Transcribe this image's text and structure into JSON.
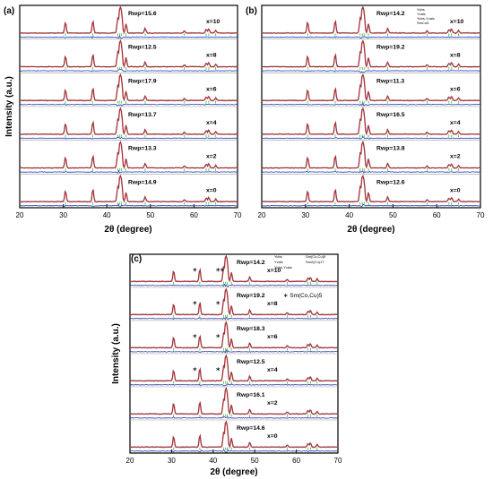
{
  "chart_data": [
    {
      "type": "line",
      "panel_label": "(a)",
      "xlabel": "2θ (degree)",
      "ylabel": "Intensity (a.u.)",
      "xlim": [
        20,
        70
      ],
      "xticks": [
        20,
        30,
        40,
        50,
        60,
        70
      ],
      "legend": null,
      "series": [
        {
          "composition": "x=10",
          "rwp_label": "Rwp=15.6",
          "rwp": 15.6
        },
        {
          "composition": "x=8",
          "rwp_label": "Rwp=12.5",
          "rwp": 12.5
        },
        {
          "composition": "x=6",
          "rwp_label": "Rwp=17.9",
          "rwp": 17.9
        },
        {
          "composition": "x=4",
          "rwp_label": "Rwp=13.7",
          "rwp": 13.7
        },
        {
          "composition": "x=2",
          "rwp_label": "Rwp=13.3",
          "rwp": 13.3
        },
        {
          "composition": "x=0",
          "rwp_label": "Rwp=14.9",
          "rwp": 14.9
        }
      ],
      "peaks_2theta": [
        30.5,
        36.8,
        42.5,
        43.0,
        43.4,
        44.4,
        48.8,
        57.8,
        62.8,
        63.4,
        65.0
      ]
    },
    {
      "type": "line",
      "panel_label": "(b)",
      "xlabel": "2θ (degree)",
      "ylabel": "",
      "xlim": [
        20,
        70
      ],
      "xticks": [
        20,
        30,
        40,
        50,
        60,
        70
      ],
      "legend": [
        "Yobs",
        "Ycalc",
        "Yobs-Ycalc",
        "SmCo5"
      ],
      "series": [
        {
          "composition": "x=10",
          "rwp_label": "Rwp=14.2",
          "rwp": 14.2
        },
        {
          "composition": "x=8",
          "rwp_label": "Rwp=19.2",
          "rwp": 19.2
        },
        {
          "composition": "x=6",
          "rwp_label": "Rwp=11.3",
          "rwp": 11.3
        },
        {
          "composition": "x=4",
          "rwp_label": "Rwp=16.5",
          "rwp": 16.5
        },
        {
          "composition": "x=2",
          "rwp_label": "Rwp=13.8",
          "rwp": 13.8
        },
        {
          "composition": "x=0",
          "rwp_label": "Rwp=12.6",
          "rwp": 12.6
        }
      ],
      "peaks_2theta": [
        30.5,
        36.8,
        42.5,
        43.0,
        43.4,
        44.4,
        48.8,
        57.8,
        62.8,
        63.4,
        65.0
      ]
    },
    {
      "type": "line",
      "panel_label": "(c)",
      "xlabel": "2θ (degree)",
      "ylabel": "Intensity (a.u.)",
      "xlim": [
        20,
        70
      ],
      "xticks": [
        20,
        30,
        40,
        50,
        60,
        70
      ],
      "legend": [
        "Yobs",
        "Ycalc",
        "Yobs-Ycalc",
        "Sm(Co,Cu)5",
        "Sm2(Co)17"
      ],
      "annotation": "∗ Sm(Co,Cu)5",
      "series": [
        {
          "composition": "x=10",
          "rwp_label": "Rwp=14.2",
          "rwp": 14.2,
          "star_2theta": [
            35.6,
            41.2,
            42.2
          ]
        },
        {
          "composition": "x=8",
          "rwp_label": "Rwp=19.2",
          "rwp": 19.2,
          "star_2theta": [
            35.6,
            41.2
          ]
        },
        {
          "composition": "x=6",
          "rwp_label": "Rwp=18.3",
          "rwp": 18.3,
          "star_2theta": [
            35.6,
            41.2
          ]
        },
        {
          "composition": "x=4",
          "rwp_label": "Rwp=12.5",
          "rwp": 12.5,
          "star_2theta": [
            35.6,
            41.2
          ]
        },
        {
          "composition": "x=2",
          "rwp_label": "Rwp=16.1",
          "rwp": 16.1,
          "star_2theta": []
        },
        {
          "composition": "x=0",
          "rwp_label": "Rwp=14.6",
          "rwp": 14.6,
          "star_2theta": []
        }
      ],
      "peaks_2theta": [
        30.5,
        36.8,
        42.5,
        43.0,
        43.4,
        44.4,
        48.8,
        57.8,
        62.8,
        63.4,
        65.0
      ]
    }
  ],
  "colors": {
    "observed": "#7f7f7f",
    "calculated": "#c0202a",
    "difference": "#1f3fb0",
    "bragg_sm": "#22aa22",
    "bragg_cu": "#c98bb0",
    "frame": "#000000"
  }
}
